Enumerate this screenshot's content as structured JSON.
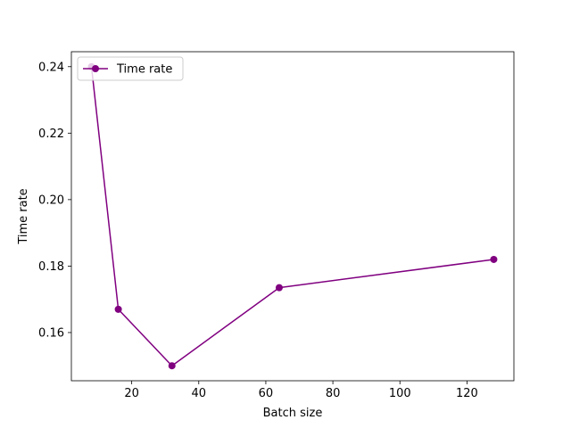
{
  "chart_data": {
    "type": "line",
    "xlabel": "Batch size",
    "ylabel": "Time rate",
    "xlim": [
      2,
      134
    ],
    "ylim": [
      0.1455,
      0.2445
    ],
    "x_ticks": [
      20,
      40,
      60,
      80,
      100,
      120
    ],
    "y_ticks": [
      0.16,
      0.18,
      0.2,
      0.22,
      0.24
    ],
    "x_tick_labels": [
      "20",
      "40",
      "60",
      "80",
      "100",
      "120"
    ],
    "y_tick_labels": [
      "0.16",
      "0.18",
      "0.20",
      "0.22",
      "0.24"
    ],
    "grid": false,
    "legend_position": "top-left",
    "series": [
      {
        "name": "Time rate",
        "color": "#800080",
        "marker": "circle",
        "x": [
          8,
          16,
          32,
          64,
          128
        ],
        "y": [
          0.24,
          0.167,
          0.15,
          0.1735,
          0.182
        ]
      }
    ]
  }
}
